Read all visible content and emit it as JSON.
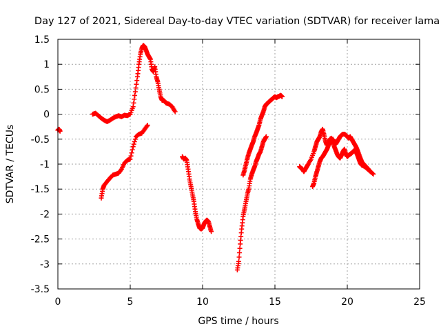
{
  "chart_data": {
    "type": "scatter",
    "title": "Day 127 of 2021, Sidereal Day-to-day VTEC variation (SDTVAR) for receiver lama",
    "xlabel": "GPS time / hours",
    "ylabel": "SDTVAR / TECUs",
    "xlim": [
      0,
      25
    ],
    "ylim": [
      -3.5,
      1.5
    ],
    "xticks": [
      0,
      5,
      10,
      15,
      20,
      25
    ],
    "yticks": [
      -3.5,
      -3,
      -2.5,
      -2,
      -1.5,
      -1,
      -0.5,
      0,
      0.5,
      1,
      1.5
    ],
    "grid": true,
    "marker": "+",
    "color": "#ff0000",
    "series": [
      {
        "name": "segment-1",
        "x": [
          0.0,
          0.05,
          0.1,
          0.15
        ],
        "y": [
          -0.32,
          -0.3,
          -0.31,
          -0.34
        ]
      },
      {
        "name": "segment-2",
        "x": [
          2.4,
          2.6,
          2.8,
          3.0,
          3.2,
          3.4,
          3.6,
          3.8,
          4.0,
          4.2,
          4.4,
          4.6,
          4.8,
          5.0,
          5.2,
          5.35,
          5.5,
          5.6,
          5.7,
          5.8,
          5.9,
          6.0,
          6.1,
          6.2,
          6.3,
          6.4,
          6.5,
          6.6,
          6.7,
          6.8,
          6.9,
          7.0,
          7.1,
          7.2,
          7.3,
          7.4,
          7.5,
          7.7,
          7.9,
          8.1
        ],
        "y": [
          0.0,
          0.02,
          -0.03,
          -0.08,
          -0.12,
          -0.15,
          -0.12,
          -0.08,
          -0.05,
          -0.03,
          -0.05,
          -0.02,
          -0.03,
          0.0,
          0.15,
          0.45,
          0.75,
          1.0,
          1.2,
          1.32,
          1.38,
          1.35,
          1.28,
          1.2,
          1.15,
          1.1,
          0.9,
          0.85,
          0.95,
          0.75,
          0.65,
          0.5,
          0.35,
          0.28,
          0.28,
          0.25,
          0.22,
          0.2,
          0.15,
          0.05
        ]
      },
      {
        "name": "segment-3",
        "x": [
          3.0,
          3.1,
          3.2,
          3.4,
          3.6,
          3.8,
          4.0,
          4.2,
          4.4,
          4.6,
          4.8,
          5.0,
          5.2,
          5.4,
          5.6,
          5.8,
          6.0,
          6.2
        ],
        "y": [
          -1.68,
          -1.5,
          -1.42,
          -1.35,
          -1.28,
          -1.22,
          -1.2,
          -1.18,
          -1.1,
          -0.98,
          -0.92,
          -0.9,
          -0.65,
          -0.45,
          -0.4,
          -0.38,
          -0.3,
          -0.22
        ]
      },
      {
        "name": "segment-4",
        "x": [
          8.6,
          8.7,
          8.8,
          8.9,
          9.0,
          9.1,
          9.2,
          9.3,
          9.4,
          9.5,
          9.6,
          9.7,
          9.8,
          9.9,
          10.0,
          10.1,
          10.2,
          10.3,
          10.4,
          10.5,
          10.6
        ],
        "y": [
          -0.85,
          -0.9,
          -0.88,
          -0.92,
          -1.1,
          -1.3,
          -1.45,
          -1.6,
          -1.75,
          -1.95,
          -2.1,
          -2.2,
          -2.28,
          -2.3,
          -2.28,
          -2.2,
          -2.15,
          -2.12,
          -2.15,
          -2.25,
          -2.35
        ]
      },
      {
        "name": "segment-5",
        "x": [
          12.4,
          12.5,
          12.6,
          12.7,
          12.8,
          12.9,
          13.0,
          13.1,
          13.2,
          13.3,
          13.4,
          13.5,
          13.6,
          13.7,
          13.8,
          13.9,
          14.0,
          14.1,
          14.2,
          14.3,
          14.4
        ],
        "y": [
          -3.12,
          -2.95,
          -2.6,
          -2.3,
          -2.05,
          -1.9,
          -1.75,
          -1.6,
          -1.48,
          -1.3,
          -1.2,
          -1.12,
          -1.05,
          -0.95,
          -0.88,
          -0.8,
          -0.75,
          -0.65,
          -0.55,
          -0.5,
          -0.45
        ]
      },
      {
        "name": "segment-6",
        "x": [
          12.8,
          12.9,
          13.0,
          13.1,
          13.2,
          13.3,
          13.4,
          13.5,
          13.6,
          13.7,
          13.8,
          13.9,
          14.0,
          14.1,
          14.2,
          14.3,
          14.4,
          14.5,
          14.6,
          14.7,
          14.8,
          14.9,
          15.0,
          15.1,
          15.2,
          15.3,
          15.4,
          15.5
        ],
        "y": [
          -1.22,
          -1.12,
          -1.0,
          -0.88,
          -0.78,
          -0.7,
          -0.62,
          -0.55,
          -0.45,
          -0.38,
          -0.3,
          -0.22,
          -0.1,
          -0.02,
          0.05,
          0.15,
          0.2,
          0.22,
          0.25,
          0.28,
          0.3,
          0.33,
          0.35,
          0.33,
          0.35,
          0.36,
          0.38,
          0.35
        ]
      },
      {
        "name": "segment-7",
        "x": [
          16.7,
          16.8,
          16.9,
          17.0,
          17.1,
          17.2,
          17.3,
          17.5,
          17.7,
          17.8,
          17.9,
          18.0,
          18.1,
          18.2,
          18.3,
          18.4,
          18.5,
          18.6,
          18.7,
          18.8,
          18.9,
          19.0,
          19.1,
          19.2,
          19.3,
          19.4,
          19.5,
          19.6,
          19.7,
          19.8,
          19.9,
          20.0,
          20.1,
          20.2,
          20.3,
          20.4,
          20.5,
          20.6,
          20.7,
          20.8,
          20.9,
          21.0,
          21.2,
          21.4,
          21.6,
          21.8
        ],
        "y": [
          -1.05,
          -1.08,
          -1.1,
          -1.15,
          -1.1,
          -1.05,
          -1.0,
          -0.9,
          -0.75,
          -0.65,
          -0.55,
          -0.5,
          -0.45,
          -0.35,
          -0.3,
          -0.42,
          -0.55,
          -0.62,
          -0.58,
          -0.5,
          -0.48,
          -0.55,
          -0.65,
          -0.72,
          -0.8,
          -0.85,
          -0.88,
          -0.82,
          -0.75,
          -0.7,
          -0.8,
          -0.85,
          -0.82,
          -0.8,
          -0.78,
          -0.75,
          -0.72,
          -0.75,
          -0.82,
          -0.9,
          -0.98,
          -1.02,
          -1.05,
          -1.1,
          -1.15,
          -1.2
        ]
      },
      {
        "name": "segment-8",
        "x": [
          17.6,
          17.7,
          17.8,
          17.9,
          18.0,
          18.1,
          18.2,
          18.3,
          18.4,
          18.5,
          18.6,
          18.7,
          18.8,
          18.9,
          19.0,
          19.1,
          19.2,
          19.3,
          19.4,
          19.5,
          19.6,
          19.7,
          19.8,
          19.9,
          20.0,
          20.1,
          20.2,
          20.3,
          20.4,
          20.5,
          20.6,
          20.7,
          20.8,
          20.9,
          21.0,
          21.2,
          21.4,
          21.6
        ],
        "y": [
          -1.45,
          -1.38,
          -1.25,
          -1.15,
          -1.05,
          -0.95,
          -0.88,
          -0.85,
          -0.8,
          -0.75,
          -0.7,
          -0.62,
          -0.58,
          -0.52,
          -0.5,
          -0.55,
          -0.6,
          -0.55,
          -0.5,
          -0.45,
          -0.42,
          -0.4,
          -0.4,
          -0.42,
          -0.45,
          -0.48,
          -0.45,
          -0.5,
          -0.55,
          -0.6,
          -0.65,
          -0.72,
          -0.8,
          -0.88,
          -0.95,
          -1.02,
          -1.08,
          -1.15
        ]
      }
    ]
  }
}
